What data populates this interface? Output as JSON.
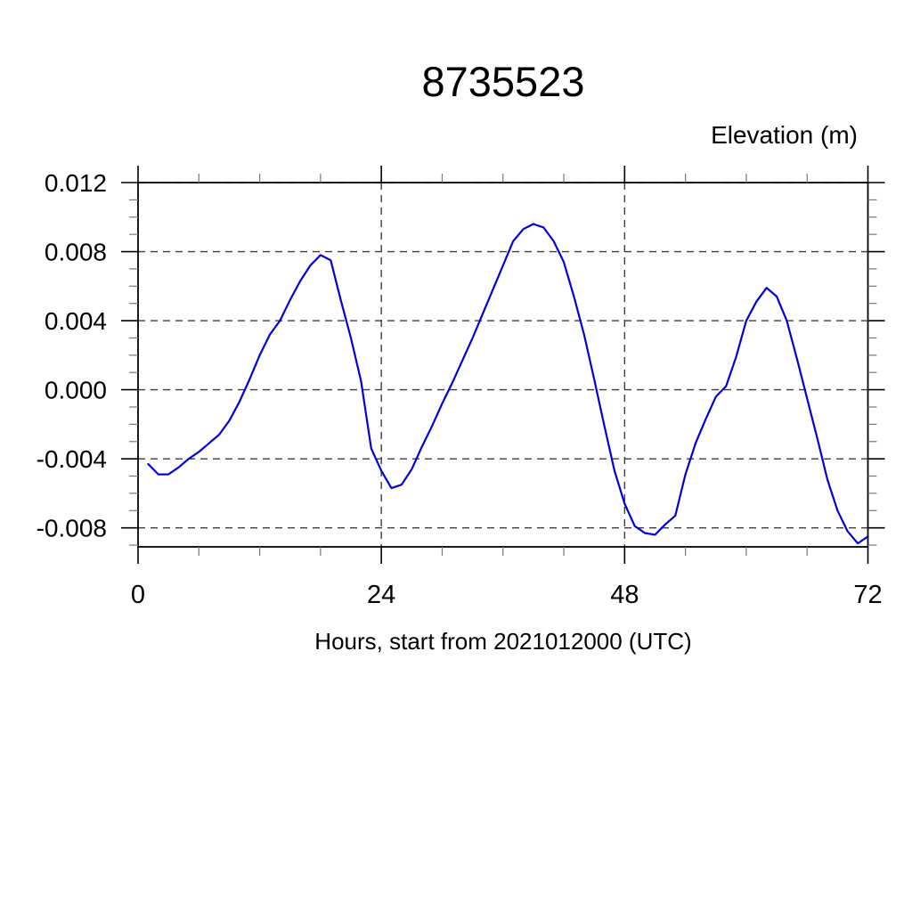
{
  "page": {
    "background": "#ffffff"
  },
  "chart_data": {
    "type": "line",
    "title": "8735523",
    "ylabel": "Elevation (m)",
    "xlabel": "Hours, start from 2021012000 (UTC)",
    "xlim": [
      0,
      72
    ],
    "ylim": [
      -0.0091,
      0.012
    ],
    "x_major_ticks": [
      0,
      24,
      48,
      72
    ],
    "x_tick_labels": [
      "0",
      "24",
      "48",
      "72"
    ],
    "x_minor_step": 6,
    "y_major_ticks": [
      0.012,
      0.008,
      0.004,
      0.0,
      -0.004,
      -0.008
    ],
    "y_tick_labels": [
      "0.012",
      "0.008",
      "0.004",
      "0.000",
      "-0.004",
      "-0.008"
    ],
    "y_minor_step": 0.001,
    "grid": {
      "horizontal_at": [
        0.012,
        0.008,
        0.004,
        0.0,
        -0.004,
        -0.008
      ],
      "vertical_at": [
        24,
        48
      ],
      "style": "dashed",
      "color": "#3d3d3d"
    },
    "line_color": "#0000dd",
    "frame_color": "#000000",
    "legend": "none",
    "series": [
      {
        "name": "elevation",
        "x": [
          1,
          2,
          3,
          4,
          5,
          6,
          7,
          8,
          9,
          10,
          11,
          12,
          13,
          14,
          15,
          16,
          17,
          18,
          19,
          20,
          21,
          22,
          23,
          24,
          25,
          26,
          27,
          28,
          29,
          30,
          31,
          32,
          33,
          34,
          35,
          36,
          37,
          38,
          39,
          40,
          41,
          42,
          43,
          44,
          45,
          46,
          47,
          48,
          49,
          50,
          51,
          52,
          53,
          54,
          55,
          56,
          57,
          58,
          59,
          60,
          61,
          62,
          63,
          64,
          65,
          66,
          67,
          68,
          69,
          70,
          71,
          72
        ],
        "y": [
          -0.0043,
          -0.0049,
          -0.0049,
          -0.0045,
          -0.004,
          -0.0036,
          -0.0031,
          -0.0026,
          -0.0018,
          -0.0007,
          0.0006,
          0.002,
          0.0032,
          0.004,
          0.0052,
          0.0063,
          0.0072,
          0.0078,
          0.0075,
          0.0052,
          0.003,
          0.0005,
          -0.0034,
          -0.0047,
          -0.0057,
          -0.0055,
          -0.0046,
          -0.0033,
          -0.0021,
          -0.0008,
          0.0004,
          0.0017,
          0.003,
          0.0044,
          0.0058,
          0.0072,
          0.0086,
          0.0093,
          0.0096,
          0.0094,
          0.0086,
          0.0074,
          0.0054,
          0.0032,
          0.0006,
          -0.0021,
          -0.0047,
          -0.0066,
          -0.0079,
          -0.0083,
          -0.0084,
          -0.0078,
          -0.0073,
          -0.0049,
          -0.0031,
          -0.0017,
          -0.0004,
          0.0002,
          0.0019,
          0.004,
          0.0051,
          0.0059,
          0.0054,
          0.004,
          0.0018,
          -0.0005,
          -0.0028,
          -0.0052,
          -0.007,
          -0.0082,
          -0.0089,
          -0.0085
        ]
      }
    ]
  }
}
